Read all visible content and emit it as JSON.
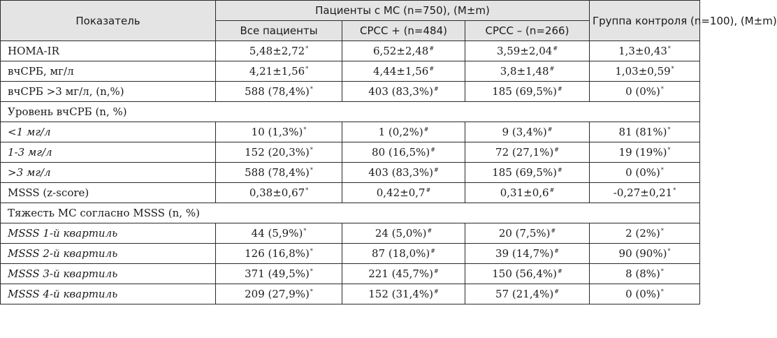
{
  "header": {
    "indicator": "Показатель",
    "group_ms": "Пациенты с МС (n=750), (M±m)",
    "control": "Группа контроля (n=100), (M±m)",
    "all_patients": "Все пациенты",
    "cpcc_plus": "СРСС + (n=484)",
    "cpcc_minus": "СРСС – (n=266)"
  },
  "rows": [
    {
      "label": "HOMA-IR",
      "italic": false,
      "values": [
        "5,48±2,72",
        "6,52±2,48",
        "3,59±2,04",
        "1,3±0,43"
      ],
      "marks": [
        "*",
        "#",
        "#",
        "*"
      ]
    },
    {
      "label": "вчСРБ, мг/л",
      "italic": false,
      "values": [
        "4,21±1,56",
        "4,44±1,56",
        "3,8±1,48",
        "1,03±0,59"
      ],
      "marks": [
        "*",
        "#",
        "#",
        "*"
      ]
    },
    {
      "label": "вчСРБ >3 мг/л, (n,%)",
      "italic": false,
      "values": [
        "588 (78,4%)",
        "403 (83,3%)",
        "185 (69,5%)",
        "0 (0%)"
      ],
      "marks": [
        "*",
        "#",
        "#",
        "*"
      ]
    },
    {
      "section": "Уровень вчСРБ (n, %)"
    },
    {
      "label": "<1 мг/л",
      "italic": true,
      "values": [
        "10 (1,3%)",
        "1 (0,2%)",
        "9 (3,4%)",
        "81 (81%)"
      ],
      "marks": [
        "*",
        "#",
        "#",
        "*"
      ]
    },
    {
      "label": "1-3 мг/л",
      "italic": true,
      "values": [
        "152 (20,3%)",
        "80 (16,5%)",
        "72 (27,1%)",
        "19 (19%)"
      ],
      "marks": [
        "*",
        "#",
        "#",
        "*"
      ]
    },
    {
      "label": ">3 мг/л",
      "italic": true,
      "values": [
        "588 (78,4%)",
        "403 (83,3%)",
        "185 (69,5%)",
        "0 (0%)"
      ],
      "marks": [
        "*",
        "#",
        "#",
        "*"
      ]
    },
    {
      "label": "MSSS (z-score)",
      "italic": false,
      "values": [
        "0,38±0,67",
        "0,42±0,7",
        "0,31±0,6",
        "-0,27±0,21"
      ],
      "marks": [
        "*",
        "#",
        "#",
        "*"
      ]
    },
    {
      "section": "Тяжесть МС согласно MSSS (n, %)"
    },
    {
      "label": "MSSS 1-й квартиль",
      "italic": true,
      "values": [
        "44 (5,9%)",
        "24 (5,0%)",
        "20 (7,5%)",
        "2 (2%)"
      ],
      "marks": [
        "*",
        "#",
        "#",
        "*"
      ]
    },
    {
      "label": "MSSS 2-й квартиль",
      "italic": true,
      "values": [
        "126 (16,8%)",
        "87 (18,0%)",
        "39 (14,7%)",
        "90 (90%)"
      ],
      "marks": [
        "*",
        "#",
        "#",
        "*"
      ]
    },
    {
      "label": "MSSS 3-й квартиль",
      "italic": true,
      "values": [
        "371 (49,5%)",
        "221 (45,7%)",
        "150 (56,4%)",
        "8 (8%)"
      ],
      "marks": [
        "*",
        "#",
        "#",
        "*"
      ]
    },
    {
      "label": "MSSS 4-й квартиль",
      "italic": true,
      "values": [
        "209 (27,9%)",
        "152 (31,4%)",
        "57 (21,4%)",
        "0 (0%)"
      ],
      "marks": [
        "*",
        "#",
        "#",
        "*"
      ]
    }
  ]
}
